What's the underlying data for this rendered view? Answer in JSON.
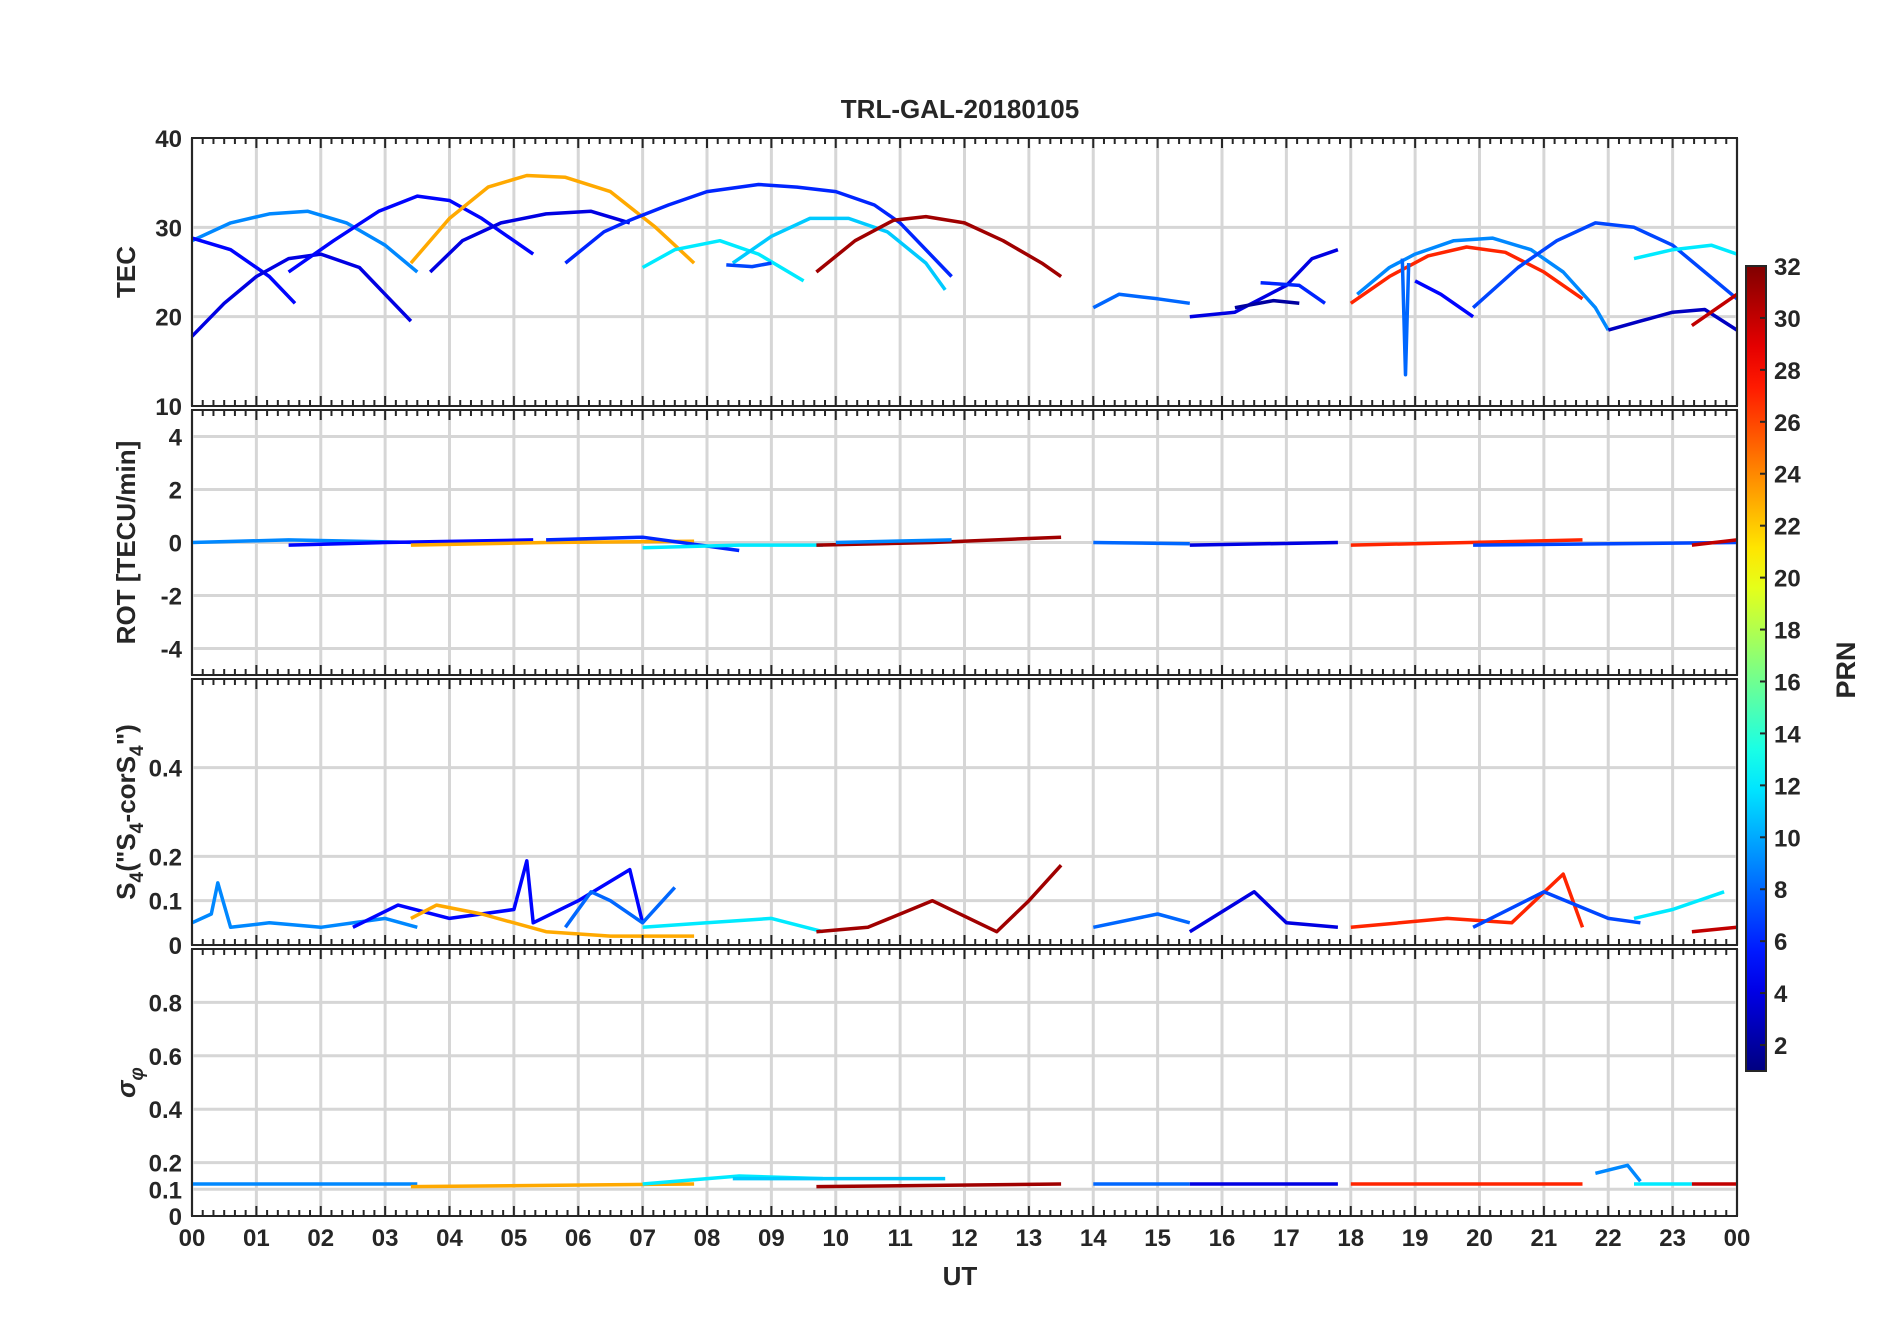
{
  "title": "TRL-GAL-20180105",
  "xlabel": "UT",
  "x_ticks": [
    "00",
    "01",
    "02",
    "03",
    "04",
    "05",
    "06",
    "07",
    "08",
    "09",
    "10",
    "11",
    "12",
    "13",
    "14",
    "15",
    "16",
    "17",
    "18",
    "19",
    "20",
    "21",
    "22",
    "23",
    "00"
  ],
  "colorbar": {
    "label": "PRN",
    "range": [
      1,
      32
    ],
    "ticks": [
      "2",
      "4",
      "6",
      "8",
      "10",
      "12",
      "14",
      "16",
      "18",
      "20",
      "22",
      "24",
      "26",
      "28",
      "30",
      "32"
    ],
    "colormap": "jet"
  },
  "chart_data": [
    {
      "type": "line",
      "panel": "TEC",
      "ylabel": "TEC",
      "ylim": [
        10,
        40
      ],
      "yticks": [
        "10",
        "20",
        "30",
        "40"
      ],
      "grid": true,
      "series": [
        {
          "prn": 9,
          "x": [
            0.0,
            0.6,
            1.2,
            1.8,
            2.4,
            3.0,
            3.5
          ],
          "y": [
            28.5,
            30.5,
            31.5,
            31.8,
            30.5,
            28.0,
            25.0
          ]
        },
        {
          "prn": 5,
          "x": [
            0.0,
            0.6,
            1.2,
            1.6
          ],
          "y": [
            28.8,
            27.5,
            24.5,
            21.5
          ]
        },
        {
          "prn": 4,
          "x": [
            0.0,
            0.5,
            1.0,
            1.5,
            2.0,
            2.6,
            3.0,
            3.4
          ],
          "y": [
            17.8,
            21.5,
            24.5,
            26.5,
            27.0,
            25.5,
            22.5,
            19.5
          ]
        },
        {
          "prn": 5,
          "x": [
            1.5,
            2.2,
            2.9,
            3.5,
            4.0,
            4.5,
            5.3
          ],
          "y": [
            25.0,
            28.5,
            31.8,
            33.5,
            33.0,
            31.0,
            27.0
          ]
        },
        {
          "prn": 23,
          "x": [
            3.4,
            4.0,
            4.6,
            5.2,
            5.8,
            6.5,
            7.2,
            7.8
          ],
          "y": [
            26.0,
            31.0,
            34.5,
            35.8,
            35.6,
            34.0,
            30.0,
            26.0
          ]
        },
        {
          "prn": 4,
          "x": [
            3.7,
            4.2,
            4.8,
            5.5,
            6.2,
            6.8
          ],
          "y": [
            25.0,
            28.5,
            30.5,
            31.5,
            31.8,
            30.5
          ]
        },
        {
          "prn": 6,
          "x": [
            5.8,
            6.4,
            6.8,
            7.4,
            8.0,
            8.8,
            9.4,
            10.0,
            10.6,
            11.0,
            11.8
          ],
          "y": [
            26.0,
            29.5,
            30.8,
            32.5,
            34.0,
            34.8,
            34.5,
            34.0,
            32.5,
            30.5,
            24.5
          ]
        },
        {
          "prn": 12,
          "x": [
            7.0,
            7.5,
            8.2,
            8.8,
            9.5
          ],
          "y": [
            25.5,
            27.5,
            28.5,
            27.0,
            24.0
          ]
        },
        {
          "prn": 11,
          "x": [
            8.4,
            9.0,
            9.6,
            10.2,
            10.8,
            11.4,
            11.7
          ],
          "y": [
            26.0,
            29.0,
            31.0,
            31.0,
            29.5,
            26.0,
            23.0
          ]
        },
        {
          "prn": 7,
          "x": [
            8.3,
            8.7,
            9.0
          ],
          "y": [
            25.8,
            25.6,
            26.0
          ]
        },
        {
          "prn": 31,
          "x": [
            9.7,
            10.3,
            10.9,
            11.4,
            12.0,
            12.6,
            13.2,
            13.5
          ],
          "y": [
            25.0,
            28.5,
            30.8,
            31.2,
            30.5,
            28.5,
            26.0,
            24.5
          ]
        },
        {
          "prn": 8,
          "x": [
            14.0,
            14.4,
            15.0,
            15.5
          ],
          "y": [
            21.0,
            22.5,
            22.0,
            21.5
          ]
        },
        {
          "prn": 4,
          "x": [
            15.5,
            16.2,
            17.0,
            17.4,
            17.8
          ],
          "y": [
            20.0,
            20.5,
            23.5,
            26.5,
            27.5
          ]
        },
        {
          "prn": 6,
          "x": [
            16.6,
            17.2,
            17.6
          ],
          "y": [
            23.8,
            23.5,
            21.5
          ]
        },
        {
          "prn": 2,
          "x": [
            16.2,
            16.8,
            17.2
          ],
          "y": [
            21.0,
            21.8,
            21.5
          ]
        },
        {
          "prn": 9,
          "x": [
            18.1,
            18.6,
            19.0,
            19.6,
            20.2,
            20.8,
            21.3,
            21.8,
            22.0
          ],
          "y": [
            22.5,
            25.5,
            27.0,
            28.5,
            28.8,
            27.5,
            25.0,
            21.0,
            18.5
          ]
        },
        {
          "prn": 27,
          "x": [
            18.0,
            18.6,
            19.2,
            19.8,
            20.4,
            21.0,
            21.6
          ],
          "y": [
            21.5,
            24.5,
            26.8,
            27.8,
            27.2,
            25.0,
            22.0
          ]
        },
        {
          "prn": 8,
          "x": [
            18.8,
            18.85,
            18.9
          ],
          "y": [
            26.5,
            13.5,
            26.0
          ]
        },
        {
          "prn": 5,
          "x": [
            19.0,
            19.4,
            19.9
          ],
          "y": [
            24.0,
            22.5,
            20.0
          ]
        },
        {
          "prn": 7,
          "x": [
            19.9,
            20.6,
            21.2,
            21.8,
            22.4,
            23.0,
            23.5,
            24.0
          ],
          "y": [
            21.0,
            25.5,
            28.5,
            30.5,
            30.0,
            28.0,
            25.0,
            22.0
          ]
        },
        {
          "prn": 3,
          "x": [
            22.0,
            22.5,
            23.0,
            23.5,
            24.0
          ],
          "y": [
            18.5,
            19.5,
            20.5,
            20.8,
            18.5
          ]
        },
        {
          "prn": 12,
          "x": [
            22.4,
            23.0,
            23.6,
            24.0
          ],
          "y": [
            26.5,
            27.5,
            28.0,
            27.0
          ]
        },
        {
          "prn": 30,
          "x": [
            23.3,
            23.7,
            24.0
          ],
          "y": [
            19.0,
            21.0,
            22.5
          ]
        }
      ]
    },
    {
      "type": "line",
      "panel": "ROT",
      "ylabel": "ROT [TECU/min]",
      "ylim": [
        -5,
        5
      ],
      "yticks": [
        "-4",
        "-2",
        "0",
        "2",
        "4"
      ],
      "grid": true,
      "series": [
        {
          "prn": 9,
          "x": [
            0.0,
            1.5,
            3.5
          ],
          "y": [
            0.0,
            0.1,
            0.0
          ]
        },
        {
          "prn": 5,
          "x": [
            1.5,
            3.0,
            5.3
          ],
          "y": [
            -0.1,
            0.0,
            0.1
          ]
        },
        {
          "prn": 23,
          "x": [
            3.4,
            5.5,
            7.8
          ],
          "y": [
            -0.1,
            0.0,
            0.05
          ]
        },
        {
          "prn": 6,
          "x": [
            5.5,
            7.0,
            8.5
          ],
          "y": [
            0.1,
            0.2,
            -0.3
          ]
        },
        {
          "prn": 12,
          "x": [
            7.0,
            8.5,
            9.8
          ],
          "y": [
            -0.2,
            -0.1,
            -0.1
          ]
        },
        {
          "prn": 31,
          "x": [
            9.7,
            11.5,
            13.5
          ],
          "y": [
            -0.1,
            0.0,
            0.2
          ]
        },
        {
          "prn": 9,
          "x": [
            10.0,
            11.8
          ],
          "y": [
            0.0,
            0.1
          ]
        },
        {
          "prn": 8,
          "x": [
            14.0,
            15.5
          ],
          "y": [
            0.0,
            -0.05
          ]
        },
        {
          "prn": 4,
          "x": [
            15.5,
            17.8
          ],
          "y": [
            -0.1,
            0.0
          ]
        },
        {
          "prn": 27,
          "x": [
            18.0,
            21.6
          ],
          "y": [
            -0.1,
            0.1
          ]
        },
        {
          "prn": 7,
          "x": [
            19.9,
            24.0
          ],
          "y": [
            -0.1,
            0.0
          ]
        },
        {
          "prn": 30,
          "x": [
            23.3,
            24.0
          ],
          "y": [
            -0.1,
            0.1
          ]
        }
      ]
    },
    {
      "type": "line",
      "panel": "S4",
      "ylabel": "S4 (\"S4-corS4\")",
      "ylim": [
        0,
        0.6
      ],
      "yticks": [
        "0",
        "0.1",
        "0.2",
        "0.4"
      ],
      "grid": true,
      "series": [
        {
          "prn": 9,
          "x": [
            0.0,
            0.3,
            0.4,
            0.6,
            1.2,
            2.0,
            3.0,
            3.5
          ],
          "y": [
            0.05,
            0.07,
            0.14,
            0.04,
            0.05,
            0.04,
            0.06,
            0.04
          ]
        },
        {
          "prn": 5,
          "x": [
            2.5,
            3.2,
            4.0,
            5.0,
            5.2,
            5.3,
            6.0,
            6.8,
            7.0
          ],
          "y": [
            0.04,
            0.09,
            0.06,
            0.08,
            0.19,
            0.05,
            0.1,
            0.17,
            0.05
          ]
        },
        {
          "prn": 23,
          "x": [
            3.4,
            3.8,
            4.5,
            5.5,
            6.5,
            7.8
          ],
          "y": [
            0.06,
            0.09,
            0.07,
            0.03,
            0.02,
            0.02
          ]
        },
        {
          "prn": 8,
          "x": [
            5.8,
            6.2,
            6.5,
            7.0,
            7.5
          ],
          "y": [
            0.04,
            0.12,
            0.1,
            0.05,
            0.13
          ]
        },
        {
          "prn": 12,
          "x": [
            7.0,
            8.0,
            9.0,
            9.8
          ],
          "y": [
            0.04,
            0.05,
            0.06,
            0.03
          ]
        },
        {
          "prn": 31,
          "x": [
            9.7,
            10.5,
            11.5,
            12.5,
            13.0,
            13.5
          ],
          "y": [
            0.03,
            0.04,
            0.1,
            0.03,
            0.1,
            0.18
          ]
        },
        {
          "prn": 8,
          "x": [
            14.0,
            15.0,
            15.5
          ],
          "y": [
            0.04,
            0.07,
            0.05
          ]
        },
        {
          "prn": 4,
          "x": [
            15.5,
            16.5,
            17.0,
            17.8
          ],
          "y": [
            0.03,
            0.12,
            0.05,
            0.04
          ]
        },
        {
          "prn": 27,
          "x": [
            18.0,
            19.5,
            20.5,
            21.3,
            21.6
          ],
          "y": [
            0.04,
            0.06,
            0.05,
            0.16,
            0.04
          ]
        },
        {
          "prn": 7,
          "x": [
            19.9,
            21.0,
            22.0,
            22.5
          ],
          "y": [
            0.04,
            0.12,
            0.06,
            0.05
          ]
        },
        {
          "prn": 12,
          "x": [
            22.4,
            23.0,
            23.8
          ],
          "y": [
            0.06,
            0.08,
            0.12
          ]
        },
        {
          "prn": 30,
          "x": [
            23.3,
            24.0
          ],
          "y": [
            0.03,
            0.04
          ]
        }
      ]
    },
    {
      "type": "line",
      "panel": "sigma_phi",
      "ylabel": "σφ",
      "ylim": [
        0,
        1
      ],
      "yticks": [
        "0",
        "0.1",
        "0.2",
        "0.4",
        "0.6",
        "0.8"
      ],
      "grid": true,
      "series": [
        {
          "prn": 9,
          "x": [
            0.0,
            3.5
          ],
          "y": [
            0.12,
            0.12
          ]
        },
        {
          "prn": 23,
          "x": [
            3.4,
            7.8
          ],
          "y": [
            0.11,
            0.12
          ]
        },
        {
          "prn": 12,
          "x": [
            7.0,
            8.5,
            9.8
          ],
          "y": [
            0.12,
            0.15,
            0.14
          ]
        },
        {
          "prn": 11,
          "x": [
            8.4,
            11.7
          ],
          "y": [
            0.14,
            0.14
          ]
        },
        {
          "prn": 31,
          "x": [
            9.7,
            13.5
          ],
          "y": [
            0.11,
            0.12
          ]
        },
        {
          "prn": 8,
          "x": [
            14.0,
            15.5
          ],
          "y": [
            0.12,
            0.12
          ]
        },
        {
          "prn": 4,
          "x": [
            15.5,
            17.8
          ],
          "y": [
            0.12,
            0.12
          ]
        },
        {
          "prn": 27,
          "x": [
            18.0,
            21.6
          ],
          "y": [
            0.12,
            0.12
          ]
        },
        {
          "prn": 9,
          "x": [
            21.8,
            22.3,
            22.5
          ],
          "y": [
            0.16,
            0.19,
            0.13
          ]
        },
        {
          "prn": 12,
          "x": [
            22.4,
            23.3
          ],
          "y": [
            0.12,
            0.12
          ]
        },
        {
          "prn": 30,
          "x": [
            23.3,
            24.0
          ],
          "y": [
            0.12,
            0.12
          ]
        }
      ]
    }
  ]
}
